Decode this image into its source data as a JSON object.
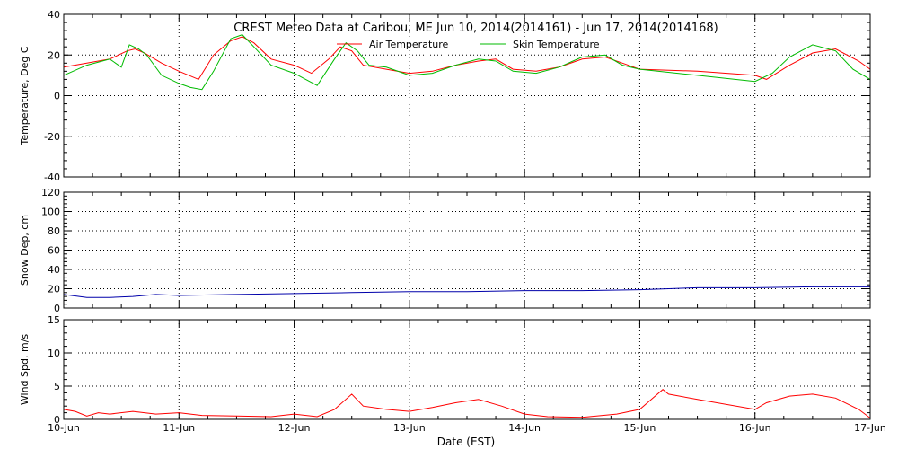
{
  "chart_data": {
    "title": "CREST Meteo Data at Caribou, ME   Jun 10, 2014(2014161) - Jun 17, 2014(2014168)",
    "xlabel": "Date (EST)",
    "x_ticks": [
      "10-Jun",
      "11-Jun",
      "12-Jun",
      "13-Jun",
      "14-Jun",
      "15-Jun",
      "16-Jun",
      "17-Jun"
    ],
    "xlim": [
      0,
      7
    ],
    "grid": true,
    "panels": [
      {
        "type": "line",
        "ylabel": "Temperature, Deg C",
        "ylim": [
          -40,
          40
        ],
        "yticks": [
          40,
          20,
          0,
          -20,
          -40
        ],
        "legend": "top-right",
        "series": [
          {
            "name": "Air Temperature",
            "color": "#ff0000",
            "x": [
              0,
              0.2,
              0.4,
              0.55,
              0.62,
              0.7,
              0.85,
              1.0,
              1.17,
              1.3,
              1.45,
              1.55,
              1.65,
              1.8,
              2.0,
              2.15,
              2.3,
              2.4,
              2.5,
              2.6,
              2.8,
              3.0,
              3.2,
              3.4,
              3.6,
              3.75,
              3.9,
              4.1,
              4.3,
              4.5,
              4.7,
              4.85,
              5.0,
              5.5,
              6.0,
              6.1,
              6.3,
              6.5,
              6.7,
              6.9,
              7.0
            ],
            "y": [
              14,
              16,
              18,
              22,
              23,
              21,
              16,
              12,
              8,
              20,
              27,
              29,
              26,
              18,
              15,
              11,
              18,
              24,
              22,
              15,
              13,
              11,
              12,
              15,
              17,
              18,
              13,
              12,
              14,
              18,
              19,
              16,
              13,
              12,
              10,
              8,
              15,
              21,
              23,
              17,
              13
            ]
          },
          {
            "name": "Skin Temperature",
            "color": "#00bb00",
            "x": [
              0,
              0.2,
              0.4,
              0.5,
              0.57,
              0.65,
              0.72,
              0.85,
              1.0,
              1.1,
              1.2,
              1.3,
              1.45,
              1.55,
              1.65,
              1.8,
              2.0,
              2.1,
              2.2,
              2.35,
              2.45,
              2.55,
              2.65,
              2.8,
              3.0,
              3.2,
              3.4,
              3.6,
              3.75,
              3.9,
              4.1,
              4.3,
              4.5,
              4.7,
              4.85,
              5.0,
              5.5,
              6.0,
              6.15,
              6.3,
              6.5,
              6.7,
              6.85,
              7.0
            ],
            "y": [
              10,
              15,
              18,
              14,
              25,
              23,
              20,
              10,
              6,
              4,
              3,
              12,
              28,
              30,
              24,
              15,
              11,
              8,
              5,
              18,
              26,
              22,
              15,
              14,
              10,
              11,
              15,
              18,
              17,
              12,
              11,
              14,
              19,
              20,
              15,
              13,
              10,
              7,
              11,
              19,
              25,
              22,
              13,
              8
            ]
          }
        ]
      },
      {
        "type": "line",
        "ylabel": "Snow Dep, cm",
        "ylim": [
          0,
          120
        ],
        "yticks": [
          120,
          100,
          80,
          60,
          40,
          20,
          0
        ],
        "series": [
          {
            "name": "",
            "color": "#0000aa",
            "x": [
              0,
              0.2,
              0.4,
              0.6,
              0.8,
              1.0,
              1.5,
              2.0,
              2.5,
              3.0,
              3.5,
              4.0,
              4.5,
              5.0,
              5.5,
              6.0,
              6.5,
              7.0
            ],
            "y": [
              14,
              11,
              11,
              12,
              14,
              13,
              14,
              15,
              16,
              17,
              17,
              18,
              18,
              19,
              21,
              21,
              22,
              22
            ]
          }
        ]
      },
      {
        "type": "line",
        "ylabel": "Wind Spd, m/s",
        "ylim": [
          0,
          15
        ],
        "yticks": [
          15,
          10,
          5,
          0
        ],
        "series": [
          {
            "name": "",
            "color": "#ff0000",
            "x": [
              0,
              0.1,
              0.2,
              0.3,
              0.4,
              0.6,
              0.8,
              1.0,
              1.2,
              1.5,
              1.8,
              2.0,
              2.2,
              2.35,
              2.5,
              2.6,
              2.8,
              3.0,
              3.2,
              3.4,
              3.6,
              3.8,
              4.0,
              4.2,
              4.5,
              4.8,
              5.0,
              5.1,
              5.2,
              5.25,
              5.5,
              6.0,
              6.1,
              6.3,
              6.5,
              6.7,
              6.9,
              7.0
            ],
            "y": [
              1.5,
              1.2,
              0.5,
              1.0,
              0.8,
              1.2,
              0.8,
              1.0,
              0.6,
              0.5,
              0.4,
              0.8,
              0.4,
              1.5,
              3.8,
              2.0,
              1.5,
              1.2,
              1.8,
              2.5,
              3.0,
              2.0,
              0.8,
              0.4,
              0.3,
              0.8,
              1.5,
              3.0,
              4.5,
              3.8,
              3.0,
              1.5,
              2.5,
              3.5,
              3.8,
              3.2,
              1.5,
              0.2
            ]
          }
        ]
      }
    ]
  }
}
